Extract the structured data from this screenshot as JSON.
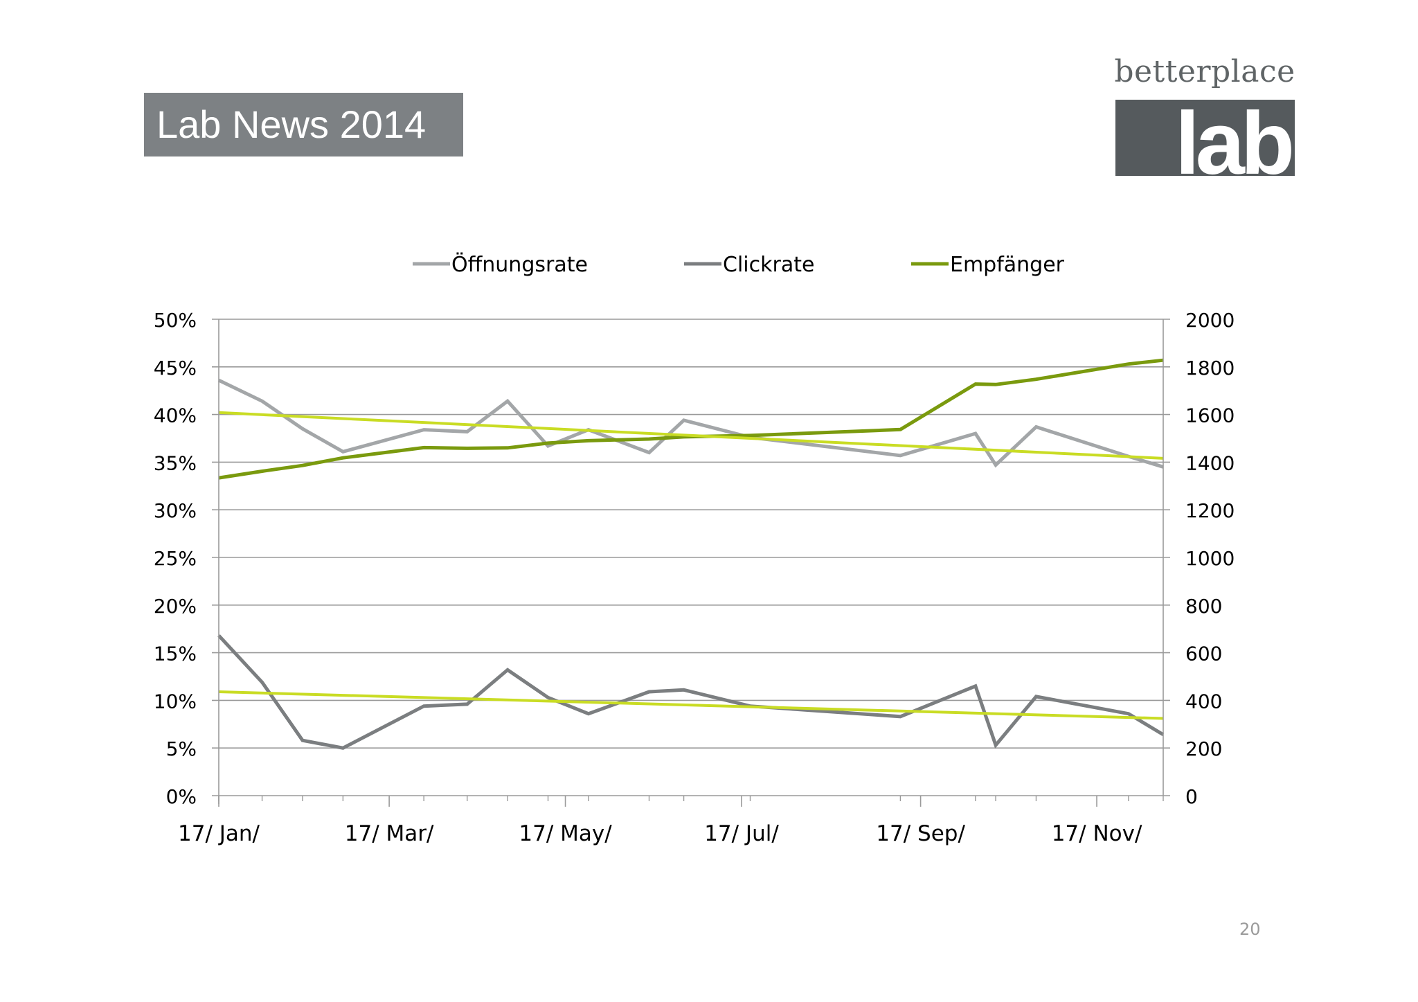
{
  "slide": {
    "title": "Lab News 2014",
    "page_number": "20"
  },
  "logo": {
    "wordmark": "betterplace",
    "block_text": "lab"
  },
  "colors": {
    "oeffnungsrate": "#a3a6a8",
    "clickrate": "#7b7e80",
    "empfaenger": "#7a9a0e",
    "trendline": "#c9dc24",
    "grid": "#9a9a9a",
    "axis_text": "#000000"
  },
  "chart_data": {
    "type": "line",
    "title": "",
    "legend_position": "top",
    "grid": true,
    "x_tick_labels": [
      "17/ Jan/",
      "17/ Mar/",
      "17/ May/",
      "17/ Jul/",
      "17/ Sep/",
      "17/ Nov/"
    ],
    "x_tick_dates": [
      "2014-01-17",
      "2014-03-17",
      "2014-05-17",
      "2014-07-17",
      "2014-09-17",
      "2014-11-17"
    ],
    "xlim": [
      "2014-01-17",
      "2014-12-10"
    ],
    "y_left": {
      "ylim": [
        0,
        50
      ],
      "ticks": [
        "0%",
        "5%",
        "10%",
        "15%",
        "20%",
        "25%",
        "30%",
        "35%",
        "40%",
        "45%",
        "50%"
      ]
    },
    "y_right": {
      "ylim": [
        0,
        2000
      ],
      "ticks": [
        "0",
        "200",
        "400",
        "600",
        "800",
        "1000",
        "1200",
        "1400",
        "1600",
        "1800",
        "2000"
      ]
    },
    "series": [
      {
        "name": "Öffnungsrate",
        "axis": "left",
        "color": "#a3a6a8",
        "points": [
          [
            "2014-01-17",
            43.6
          ],
          [
            "2014-02-01",
            41.4
          ],
          [
            "2014-02-15",
            38.5
          ],
          [
            "2014-03-01",
            36.1
          ],
          [
            "2014-03-29",
            38.4
          ],
          [
            "2014-04-13",
            38.2
          ],
          [
            "2014-04-27",
            41.4
          ],
          [
            "2014-05-11",
            36.7
          ],
          [
            "2014-05-25",
            38.4
          ],
          [
            "2014-06-15",
            36.0
          ],
          [
            "2014-06-27",
            39.4
          ],
          [
            "2014-07-20",
            37.6
          ],
          [
            "2014-09-10",
            35.7
          ],
          [
            "2014-10-06",
            38.0
          ],
          [
            "2014-10-13",
            34.7
          ],
          [
            "2014-10-27",
            38.7
          ],
          [
            "2014-11-28",
            35.6
          ],
          [
            "2014-12-10",
            34.5
          ]
        ]
      },
      {
        "name": "Clickrate",
        "axis": "left",
        "color": "#7b7e80",
        "points": [
          [
            "2014-01-17",
            16.8
          ],
          [
            "2014-02-01",
            11.9
          ],
          [
            "2014-02-15",
            5.8
          ],
          [
            "2014-03-01",
            5.0
          ],
          [
            "2014-03-29",
            9.4
          ],
          [
            "2014-04-13",
            9.6
          ],
          [
            "2014-04-27",
            13.2
          ],
          [
            "2014-05-11",
            10.3
          ],
          [
            "2014-05-25",
            8.6
          ],
          [
            "2014-06-15",
            10.9
          ],
          [
            "2014-06-27",
            11.1
          ],
          [
            "2014-07-20",
            9.4
          ],
          [
            "2014-09-10",
            8.3
          ],
          [
            "2014-10-06",
            11.5
          ],
          [
            "2014-10-13",
            5.3
          ],
          [
            "2014-10-27",
            10.4
          ],
          [
            "2014-11-28",
            8.6
          ],
          [
            "2014-12-10",
            6.4
          ]
        ]
      },
      {
        "name": "Empfänger",
        "axis": "right",
        "color": "#7a9a0e",
        "points": [
          [
            "2014-01-17",
            1334
          ],
          [
            "2014-02-01",
            1362
          ],
          [
            "2014-02-15",
            1386
          ],
          [
            "2014-03-01",
            1418
          ],
          [
            "2014-03-29",
            1461
          ],
          [
            "2014-04-13",
            1458
          ],
          [
            "2014-04-27",
            1460
          ],
          [
            "2014-05-11",
            1480
          ],
          [
            "2014-05-25",
            1490
          ],
          [
            "2014-06-15",
            1497
          ],
          [
            "2014-06-27",
            1506
          ],
          [
            "2014-07-20",
            1512
          ],
          [
            "2014-09-10",
            1537
          ],
          [
            "2014-10-06",
            1728
          ],
          [
            "2014-10-13",
            1726
          ],
          [
            "2014-10-27",
            1748
          ],
          [
            "2014-11-28",
            1812
          ],
          [
            "2014-12-10",
            1828
          ]
        ]
      },
      {
        "axis": "left",
        "color": "#c9dc24",
        "role": "trend",
        "points": [
          [
            "2014-01-17",
            40.2
          ],
          [
            "2014-12-10",
            35.4
          ]
        ]
      },
      {
        "axis": "left",
        "color": "#c9dc24",
        "role": "trend",
        "points": [
          [
            "2014-01-17",
            10.9
          ],
          [
            "2014-12-10",
            8.1
          ]
        ]
      }
    ],
    "legend": [
      "Öffnungsrate",
      "Clickrate",
      "Empfänger"
    ]
  }
}
